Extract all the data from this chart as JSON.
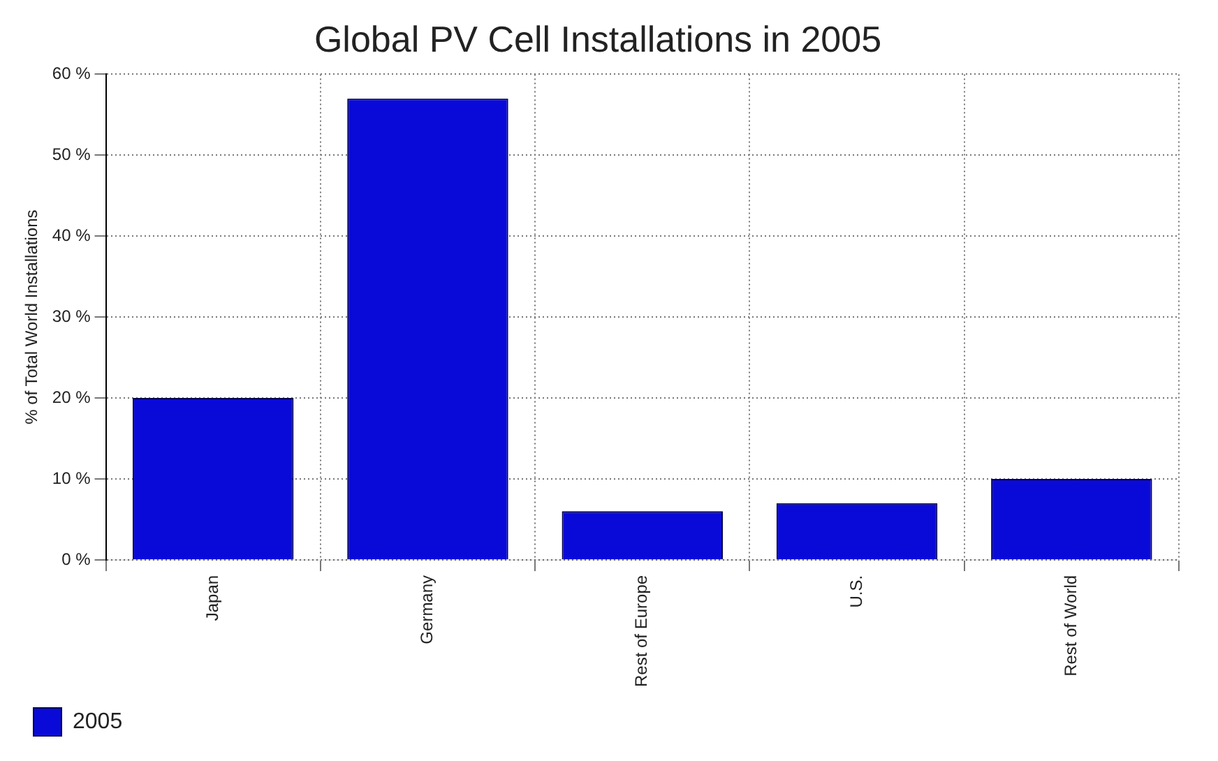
{
  "chart_data": {
    "type": "bar",
    "title": "Global PV Cell Installations in 2005",
    "ylabel": "% of Total World Installations",
    "categories": [
      "Japan",
      "Germany",
      "Rest of Europe",
      "U.S.",
      "Rest of World"
    ],
    "series": [
      {
        "name": "2005",
        "color": "#0a0ad8",
        "values": [
          20,
          57,
          6,
          7,
          10
        ]
      }
    ],
    "ylim": [
      0,
      60
    ],
    "yticks": [
      {
        "value": 0,
        "label": "0 %"
      },
      {
        "value": 10,
        "label": "10 %"
      },
      {
        "value": 20,
        "label": "20 %"
      },
      {
        "value": 30,
        "label": "30 %"
      },
      {
        "value": 40,
        "label": "40 %"
      },
      {
        "value": 50,
        "label": "50 %"
      },
      {
        "value": 60,
        "label": "60 %"
      }
    ],
    "grid": true,
    "legend": "bottom left"
  }
}
